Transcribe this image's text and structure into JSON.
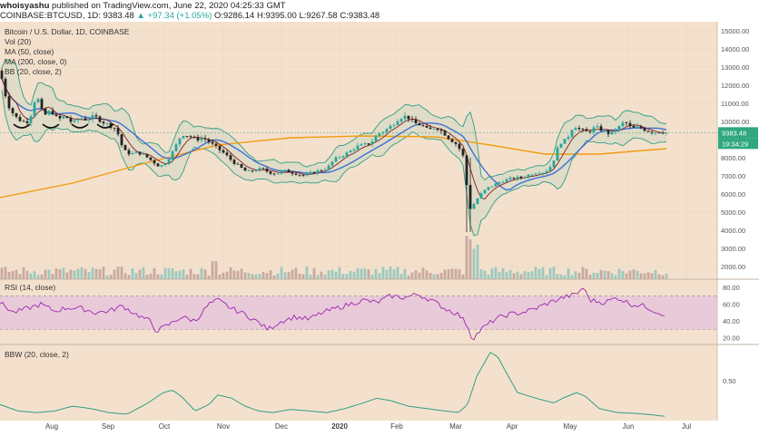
{
  "header": {
    "author": "whoisyashu",
    "published": "published on TradingView.com, June 22, 2020 04:25:33 GMT",
    "symbol": "COINBASE:BTCUSD, 1D",
    "last": "9383.48",
    "change": "▲ +97.34 (+1.05%)",
    "ohlc": "O:9286.14 H:9395.00 L:9267.58 C:9383.48"
  },
  "colors": {
    "background": "#f4e1cd",
    "candle_up": "#26a69a",
    "candle_down": "#222222",
    "ma50": "#3f6fd6",
    "ma200": "#f39c12",
    "bollinger_mid": "#8b1a1a",
    "bollinger_band": "#2f9e86",
    "rsi_line": "#9c27b0",
    "rsi_fill": "#e6c4dc",
    "bbw_line": "#2f9e86"
  },
  "chart_data": [
    {
      "type": "candlestick",
      "legend": [
        "Bitcoin / U.S. Dollar, 1D, COINBASE",
        "Vol (20)",
        "MA (50, close)",
        "MA (200, close, 0)",
        "BB (20, close, 2)"
      ],
      "x_ticks": [
        "Aug",
        "Sep",
        "Oct",
        "Nov",
        "Dec",
        "2020",
        "Feb",
        "Mar",
        "Apr",
        "May",
        "Jun",
        "Jul"
      ],
      "y_ticks": [
        15000,
        14000,
        13000,
        12000,
        11000,
        10000,
        9000,
        8000,
        7000,
        6000,
        5000,
        4000,
        3000,
        2000
      ],
      "y_tick_labels": [
        "15000.00",
        "14000.00",
        "13000.00",
        "12000.00",
        "11000.00",
        "10000.00",
        "9000.00",
        "8000.00",
        "7000.00",
        "6000.00",
        "5000.00",
        "4000.00",
        "3000.00",
        "2000.00"
      ],
      "ylim": [
        1300,
        15500
      ],
      "price_label": "9383.48",
      "countdown_label": "19:34:29",
      "price_path": [
        [
          0,
          12800
        ],
        [
          8,
          11000
        ],
        [
          16,
          10300
        ],
        [
          24,
          10000
        ],
        [
          32,
          10000
        ],
        [
          40,
          11500
        ],
        [
          48,
          10300
        ],
        [
          56,
          10600
        ],
        [
          64,
          10100
        ],
        [
          72,
          10300
        ],
        [
          80,
          9900
        ],
        [
          88,
          10200
        ],
        [
          96,
          10100
        ],
        [
          104,
          10300
        ],
        [
          112,
          10000
        ],
        [
          120,
          9800
        ],
        [
          128,
          9600
        ],
        [
          136,
          8400
        ],
        [
          144,
          8200
        ],
        [
          152,
          8300
        ],
        [
          160,
          8100
        ],
        [
          168,
          7800
        ],
        [
          176,
          7500
        ],
        [
          184,
          7800
        ],
        [
          192,
          8500
        ],
        [
          200,
          9300
        ],
        [
          208,
          9200
        ],
        [
          216,
          9000
        ],
        [
          224,
          9100
        ],
        [
          232,
          8800
        ],
        [
          240,
          8500
        ],
        [
          248,
          8200
        ],
        [
          256,
          7800
        ],
        [
          264,
          7500
        ],
        [
          272,
          7200
        ],
        [
          280,
          7300
        ],
        [
          288,
          7400
        ],
        [
          296,
          7200
        ],
        [
          304,
          7100
        ],
        [
          312,
          7300
        ],
        [
          320,
          7200
        ],
        [
          328,
          7100
        ],
        [
          336,
          7000
        ],
        [
          344,
          7200
        ],
        [
          352,
          7300
        ],
        [
          360,
          7400
        ],
        [
          368,
          7900
        ],
        [
          376,
          8100
        ],
        [
          384,
          8300
        ],
        [
          392,
          8600
        ],
        [
          400,
          8700
        ],
        [
          408,
          8800
        ],
        [
          416,
          9300
        ],
        [
          424,
          9500
        ],
        [
          432,
          9800
        ],
        [
          440,
          10200
        ],
        [
          448,
          10300
        ],
        [
          456,
          9900
        ],
        [
          464,
          9800
        ],
        [
          472,
          9500
        ],
        [
          480,
          9700
        ],
        [
          488,
          9400
        ],
        [
          496,
          9000
        ],
        [
          504,
          8700
        ],
        [
          512,
          7900
        ],
        [
          516,
          5100
        ],
        [
          520,
          5300
        ],
        [
          528,
          5900
        ],
        [
          536,
          6300
        ],
        [
          544,
          6500
        ],
        [
          552,
          6700
        ],
        [
          560,
          6800
        ],
        [
          568,
          6900
        ],
        [
          576,
          6900
        ],
        [
          584,
          7100
        ],
        [
          592,
          7200
        ],
        [
          600,
          7200
        ],
        [
          608,
          7600
        ],
        [
          616,
          8800
        ],
        [
          624,
          9000
        ],
        [
          632,
          9800
        ],
        [
          640,
          9500
        ],
        [
          648,
          9400
        ],
        [
          656,
          9700
        ],
        [
          664,
          9500
        ],
        [
          672,
          9300
        ],
        [
          680,
          9600
        ],
        [
          688,
          10000
        ],
        [
          696,
          9600
        ],
        [
          704,
          9700
        ],
        [
          712,
          9500
        ],
        [
          720,
          9400
        ],
        [
          728,
          9450
        ],
        [
          734,
          9383
        ]
      ],
      "volume_label": "Vol (20)"
    },
    {
      "type": "line",
      "label": "RSI (14, close)",
      "y_ticks": [
        80,
        60,
        40,
        20
      ],
      "y_tick_labels": [
        "80.00",
        "60.00",
        "40.00",
        "20.00"
      ],
      "ylim": [
        12,
        90
      ],
      "overbought": 70,
      "oversold": 30,
      "values_path": [
        [
          0,
          62
        ],
        [
          15,
          50
        ],
        [
          30,
          55
        ],
        [
          45,
          60
        ],
        [
          60,
          52
        ],
        [
          75,
          56
        ],
        [
          90,
          55
        ],
        [
          105,
          50
        ],
        [
          120,
          52
        ],
        [
          135,
          58
        ],
        [
          150,
          48
        ],
        [
          165,
          40
        ],
        [
          172,
          28
        ],
        [
          185,
          35
        ],
        [
          200,
          45
        ],
        [
          215,
          40
        ],
        [
          230,
          60
        ],
        [
          240,
          65
        ],
        [
          255,
          55
        ],
        [
          270,
          48
        ],
        [
          285,
          38
        ],
        [
          295,
          30
        ],
        [
          310,
          40
        ],
        [
          325,
          45
        ],
        [
          340,
          42
        ],
        [
          355,
          50
        ],
        [
          370,
          55
        ],
        [
          385,
          60
        ],
        [
          400,
          65
        ],
        [
          415,
          62
        ],
        [
          430,
          70
        ],
        [
          445,
          68
        ],
        [
          460,
          72
        ],
        [
          475,
          65
        ],
        [
          490,
          55
        ],
        [
          505,
          48
        ],
        [
          515,
          35
        ],
        [
          520,
          18
        ],
        [
          530,
          30
        ],
        [
          545,
          42
        ],
        [
          560,
          48
        ],
        [
          575,
          50
        ],
        [
          590,
          55
        ],
        [
          605,
          62
        ],
        [
          620,
          68
        ],
        [
          635,
          72
        ],
        [
          642,
          80
        ],
        [
          650,
          65
        ],
        [
          665,
          62
        ],
        [
          680,
          68
        ],
        [
          695,
          60
        ],
        [
          710,
          58
        ],
        [
          725,
          50
        ],
        [
          734,
          48
        ]
      ]
    },
    {
      "type": "line",
      "label": "BBW (20, close, 2)",
      "y_ticks": [
        0.5
      ],
      "y_tick_labels": [
        "0.50"
      ],
      "ylim": [
        0,
        0.95
      ],
      "values_path": [
        [
          0,
          0.2
        ],
        [
          20,
          0.12
        ],
        [
          40,
          0.1
        ],
        [
          60,
          0.12
        ],
        [
          80,
          0.18
        ],
        [
          100,
          0.15
        ],
        [
          120,
          0.1
        ],
        [
          140,
          0.08
        ],
        [
          160,
          0.2
        ],
        [
          180,
          0.35
        ],
        [
          190,
          0.38
        ],
        [
          200,
          0.3
        ],
        [
          215,
          0.12
        ],
        [
          230,
          0.2
        ],
        [
          240,
          0.32
        ],
        [
          255,
          0.28
        ],
        [
          270,
          0.18
        ],
        [
          285,
          0.12
        ],
        [
          300,
          0.1
        ],
        [
          320,
          0.14
        ],
        [
          340,
          0.12
        ],
        [
          360,
          0.1
        ],
        [
          380,
          0.15
        ],
        [
          400,
          0.22
        ],
        [
          415,
          0.28
        ],
        [
          430,
          0.25
        ],
        [
          450,
          0.18
        ],
        [
          470,
          0.15
        ],
        [
          490,
          0.12
        ],
        [
          505,
          0.1
        ],
        [
          515,
          0.2
        ],
        [
          525,
          0.55
        ],
        [
          540,
          0.85
        ],
        [
          548,
          0.8
        ],
        [
          560,
          0.55
        ],
        [
          570,
          0.35
        ],
        [
          590,
          0.28
        ],
        [
          610,
          0.22
        ],
        [
          620,
          0.28
        ],
        [
          635,
          0.35
        ],
        [
          645,
          0.3
        ],
        [
          660,
          0.15
        ],
        [
          680,
          0.1
        ],
        [
          700,
          0.09
        ],
        [
          720,
          0.07
        ],
        [
          734,
          0.05
        ]
      ]
    }
  ]
}
